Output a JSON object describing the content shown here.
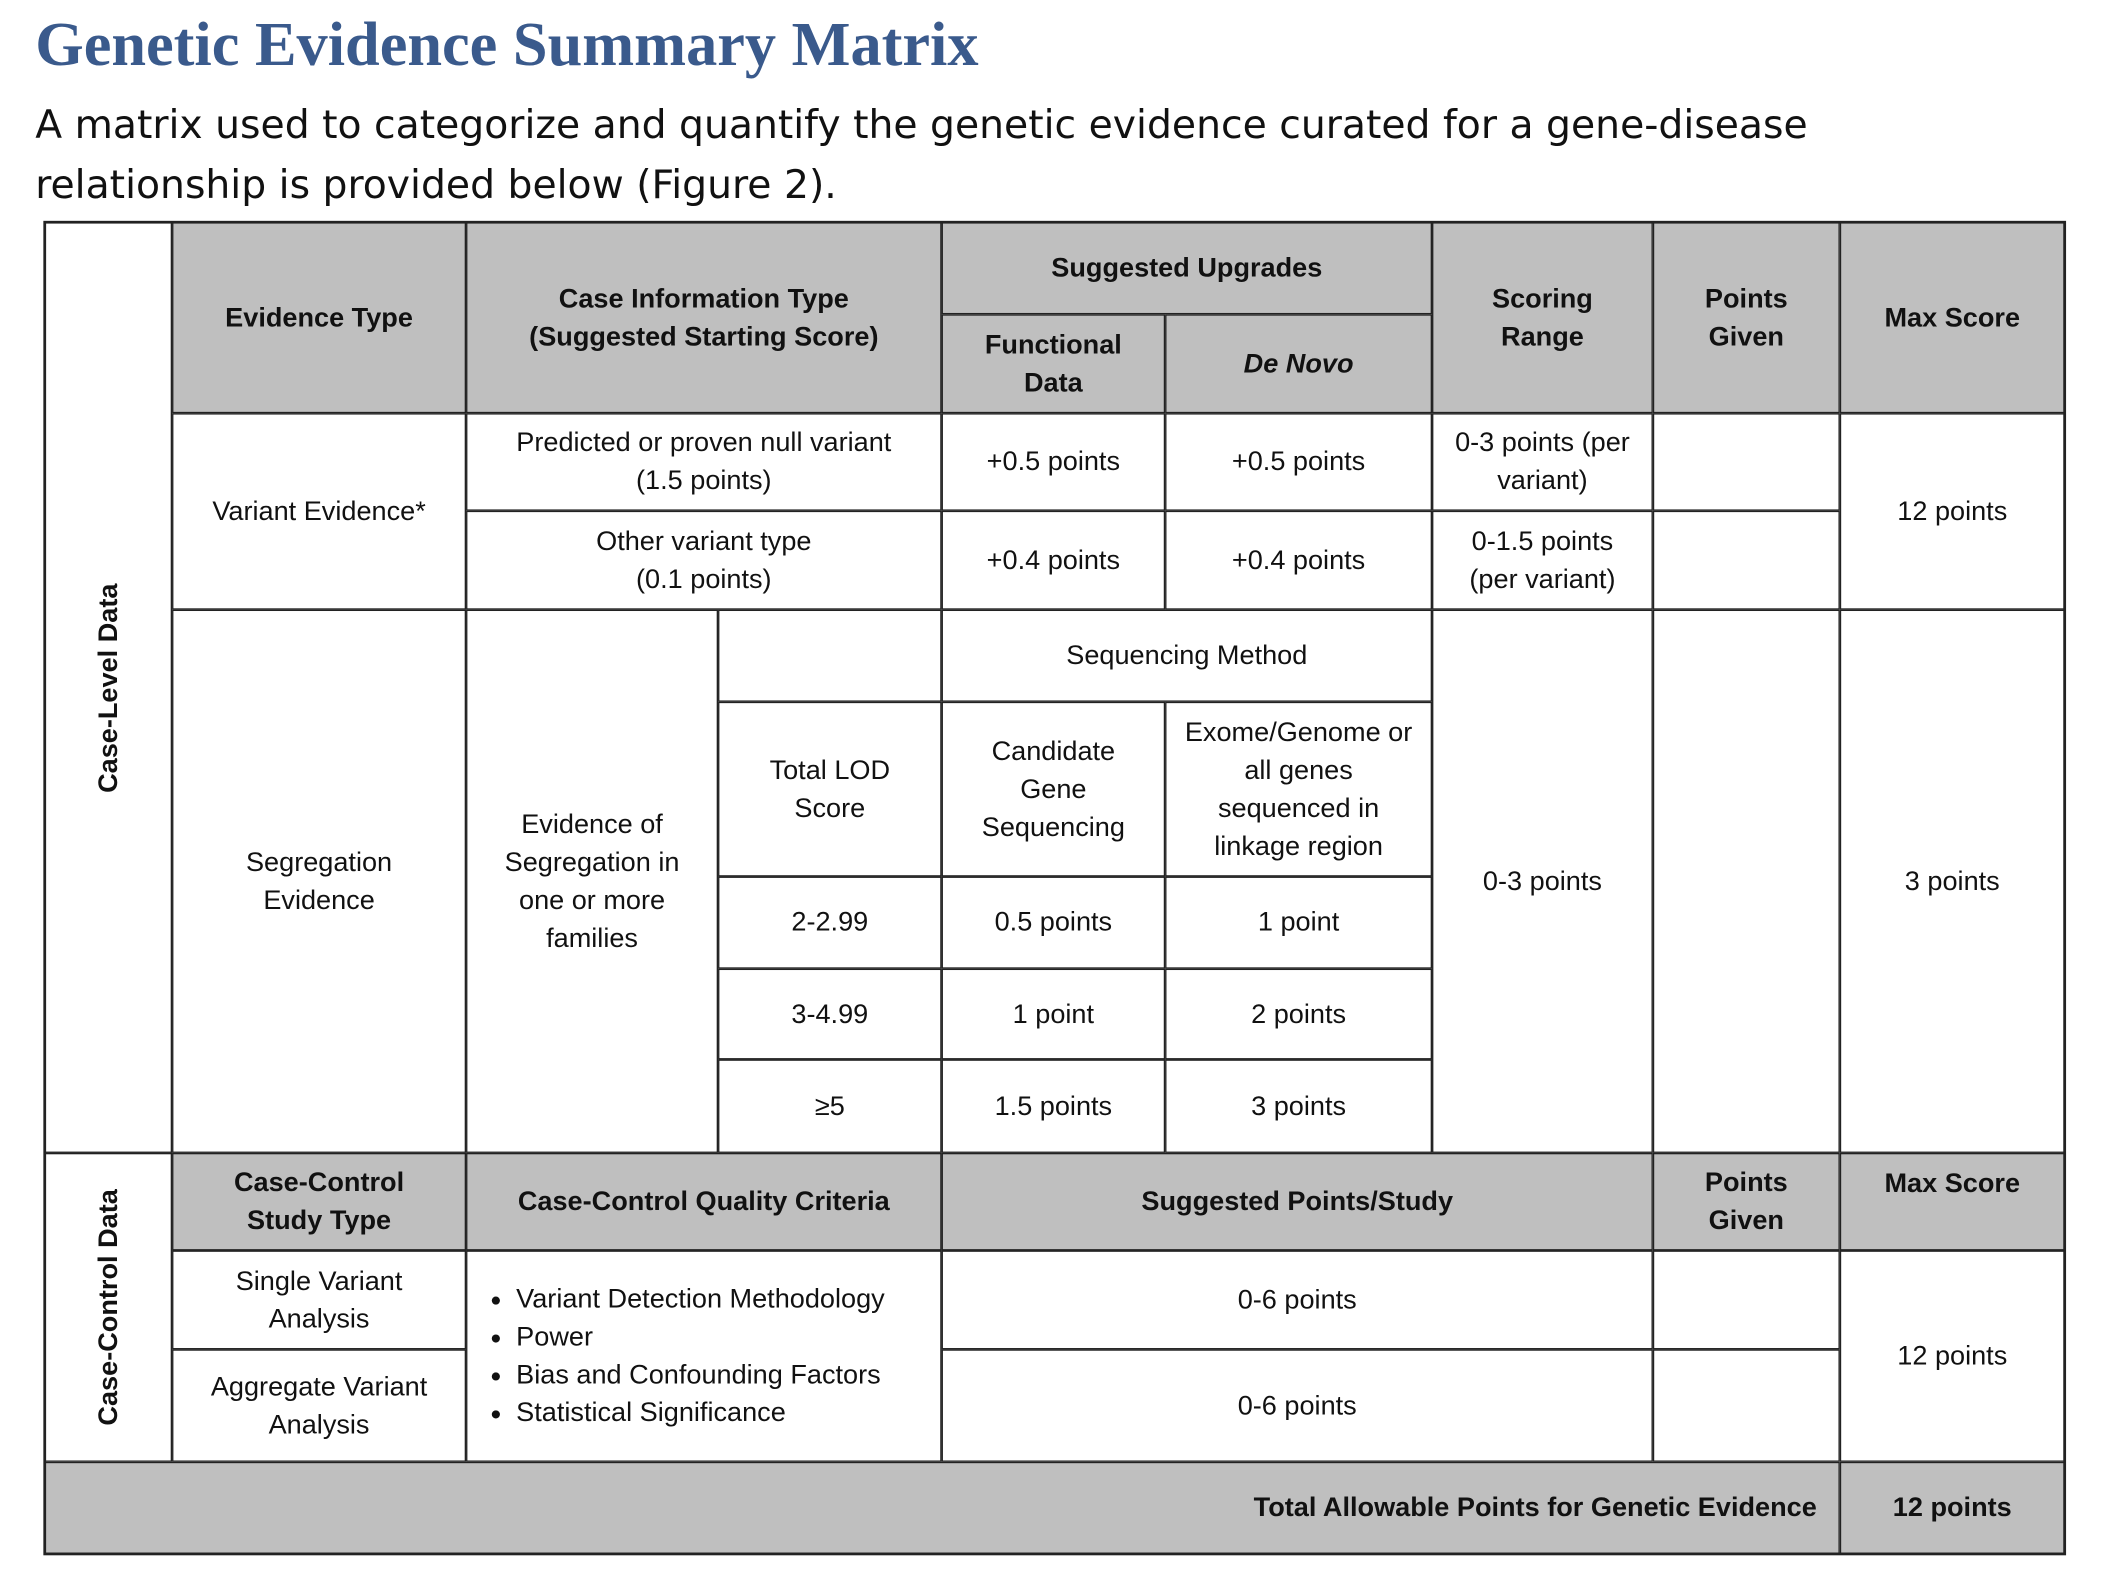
{
  "title": "Genetic Evidence Summary Matrix",
  "intro": "A matrix used to categorize and quantify the genetic evidence curated for a gene-disease relationship is provided below (Figure 2).",
  "case_level": {
    "side_label": "Case-Level Data",
    "headers": {
      "evidence_type": "Evidence Type",
      "case_info_type": "Case Information Type (Suggested Starting Score)",
      "suggested_upgrades": "Suggested Upgrades",
      "functional_data": "Functional Data",
      "de_novo": "De Novo",
      "scoring_range": "Scoring Range",
      "points_given": "Points Given",
      "max_score": "Max Score"
    },
    "variant": {
      "label": "Variant Evidence*",
      "rows": [
        {
          "case_info": "Predicted or proven null variant (1.5 points)",
          "functional": "+0.5 points",
          "de_novo": "+0.5 points",
          "range": "0-3 points (per variant)"
        },
        {
          "case_info": "Other variant type (0.1 points)",
          "functional": "+0.4 points",
          "de_novo": "+0.4 points",
          "range": "0-1.5 points (per variant)"
        }
      ],
      "max": "12 points"
    },
    "segregation": {
      "label": "Segregation Evidence",
      "case_info": "Evidence of Segregation in one or more families",
      "sequencing_method": "Sequencing Method",
      "lod_header": "Total LOD Score",
      "candidate": "Candidate Gene Sequencing",
      "exome": "Exome/Genome or all genes sequenced in linkage region",
      "rows": [
        [
          "2-2.99",
          "0.5 points",
          "1 point"
        ],
        [
          "3-4.99",
          "1 point",
          "2 points"
        ],
        [
          "≥5",
          "1.5 points",
          "3 points"
        ]
      ],
      "range": "0-3 points",
      "max": "3 points"
    }
  },
  "case_control": {
    "side_label": "Case-Control Data",
    "headers": {
      "study_type": "Case-Control Study Type",
      "quality": "Case-Control Quality Criteria",
      "suggested": "Suggested Points/Study",
      "points_given": "Points Given",
      "max_score": "Max Score"
    },
    "rows": [
      {
        "type": "Single Variant Analysis",
        "points": "0-6 points"
      },
      {
        "type": "Aggregate Variant Analysis",
        "points": "0-6 points"
      }
    ],
    "criteria": [
      "Variant Detection Methodology",
      "Power",
      "Bias and Confounding Factors",
      "Statistical Significance"
    ],
    "max": "12 points"
  },
  "total": {
    "label": "Total Allowable Points for Genetic Evidence",
    "value": "12 points"
  }
}
